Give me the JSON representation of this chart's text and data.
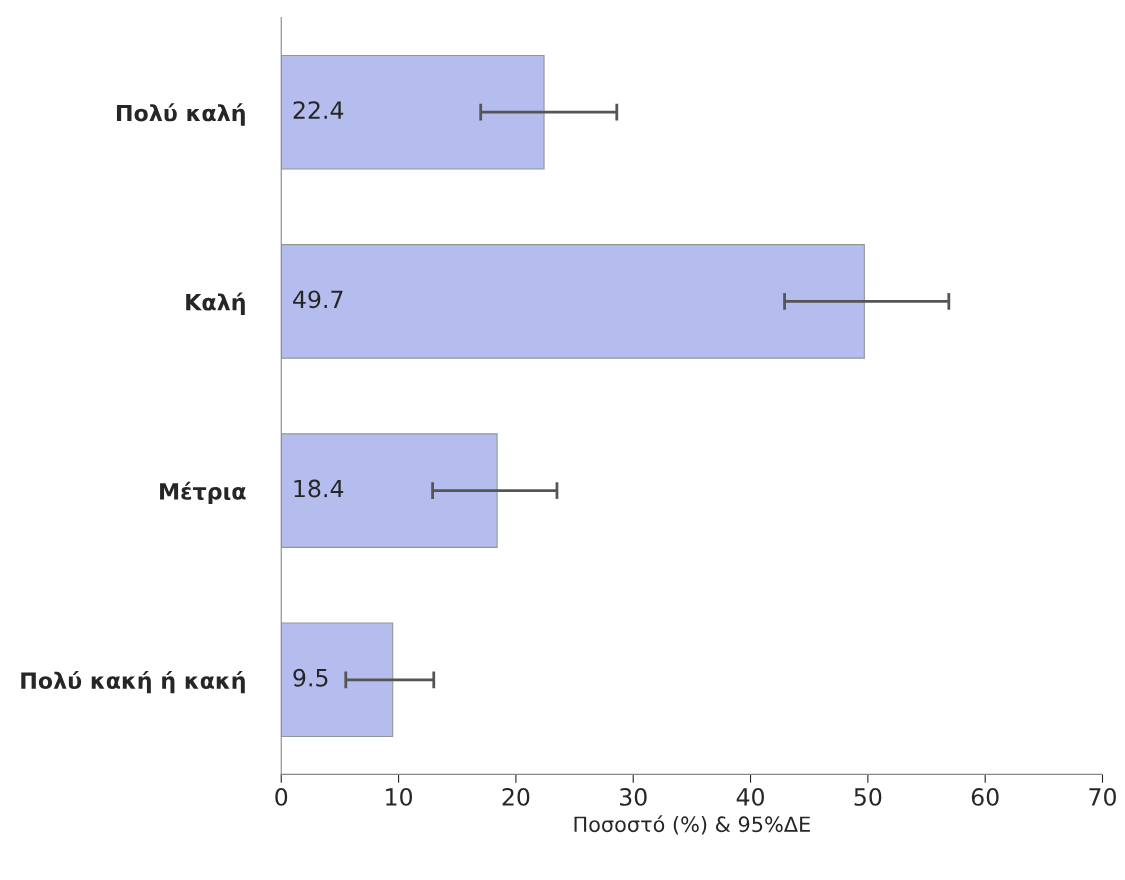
{
  "chart_data": {
    "type": "bar",
    "orientation": "horizontal",
    "xlabel": "Ποσοστό (%) & 95%ΔΕ",
    "categories": [
      "Πολύ καλή",
      "Καλή",
      "Μέτρια",
      "Πολύ κακή ή κακή"
    ],
    "values": [
      22.4,
      49.7,
      18.4,
      9.5
    ],
    "errors": [
      [
        17.0,
        28.6
      ],
      [
        42.9,
        56.9
      ],
      [
        12.9,
        23.5
      ],
      [
        5.5,
        13.0
      ]
    ],
    "color": "#b4bdee",
    "data_labels": true,
    "xlim": [
      0,
      70
    ],
    "xticks": [
      0,
      10,
      20,
      30,
      40,
      50,
      60,
      70
    ],
    "grid": false,
    "legend": false
  }
}
